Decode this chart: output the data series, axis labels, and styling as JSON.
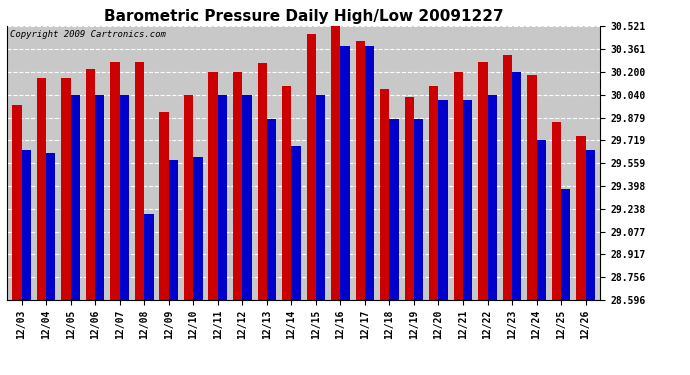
{
  "title": "Barometric Pressure Daily High/Low 20091227",
  "copyright": "Copyright 2009 Cartronics.com",
  "categories": [
    "12/03",
    "12/04",
    "12/05",
    "12/06",
    "12/07",
    "12/08",
    "12/09",
    "12/10",
    "12/11",
    "12/12",
    "12/13",
    "12/14",
    "12/15",
    "12/16",
    "12/17",
    "12/18",
    "12/19",
    "12/20",
    "12/21",
    "12/22",
    "12/23",
    "12/24",
    "12/25",
    "12/26"
  ],
  "highs": [
    29.97,
    30.16,
    30.16,
    30.22,
    30.27,
    30.27,
    29.92,
    30.04,
    30.2,
    30.2,
    30.26,
    30.1,
    30.47,
    30.52,
    30.42,
    30.08,
    30.02,
    30.1,
    30.2,
    30.27,
    30.32,
    30.18,
    29.85,
    29.75
  ],
  "lows": [
    29.65,
    29.63,
    30.04,
    30.04,
    30.04,
    29.2,
    29.58,
    29.6,
    30.04,
    30.04,
    29.87,
    29.68,
    30.04,
    30.38,
    30.38,
    29.87,
    29.87,
    30.0,
    30.0,
    30.04,
    30.2,
    29.72,
    29.38,
    29.65
  ],
  "ymin": 28.596,
  "ymax": 30.521,
  "yticks": [
    28.596,
    28.756,
    28.917,
    29.077,
    29.238,
    29.398,
    29.559,
    29.719,
    29.879,
    30.04,
    30.2,
    30.361,
    30.521
  ],
  "high_color": "#cc0000",
  "low_color": "#0000cc",
  "bg_color": "#c8c8c8",
  "plot_bg_color": "#c8c8c8",
  "bar_width": 0.38,
  "title_fontsize": 11,
  "tick_fontsize": 7,
  "copyright_fontsize": 6.5
}
